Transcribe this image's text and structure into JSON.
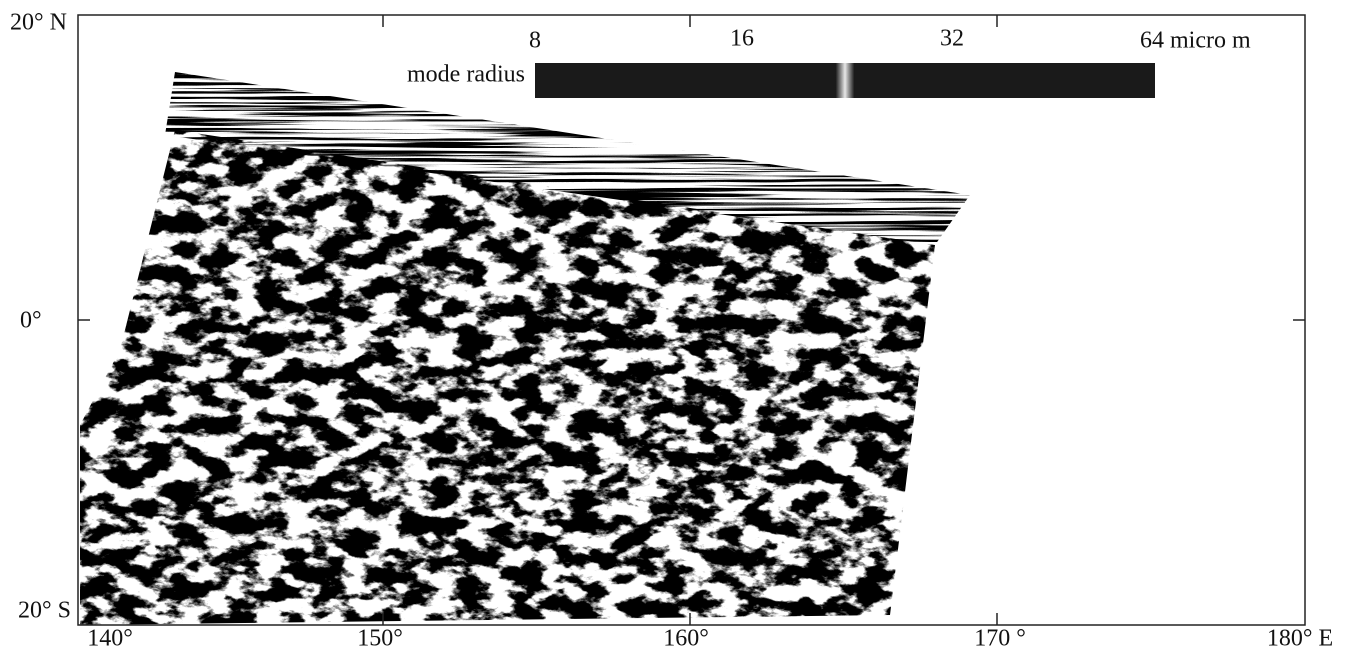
{
  "map": {
    "lat_labels": [
      "20° N",
      "0°",
      "20° S"
    ],
    "lon_labels": [
      "140°",
      "150°",
      "160°",
      "170 °",
      "180° E"
    ],
    "colorbar": {
      "title": "mode radius",
      "tick_labels": [
        "8",
        "16",
        "32",
        "64 micro m"
      ]
    }
  }
}
